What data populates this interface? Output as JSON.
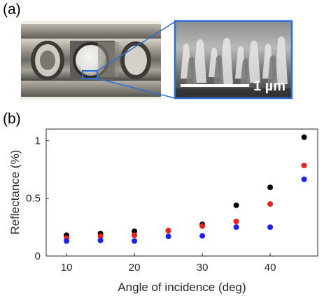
{
  "panels": {
    "a": "(a)",
    "b": "(b)"
  },
  "inset": {
    "scale_bar_label": "1 µm"
  },
  "colors": {
    "highlight_box": "#2a6fd6",
    "series_black": "#000000",
    "series_red": "#e8231c",
    "series_blue": "#1f22e8"
  },
  "chart_data": {
    "type": "scatter",
    "xlabel": "Angle of incidence (deg)",
    "ylabel": "Reflectance (%)",
    "xlim": [
      7,
      47
    ],
    "ylim": [
      0,
      1.1
    ],
    "xticks": [
      10,
      20,
      30,
      40
    ],
    "yticks": [
      0,
      0.5,
      1
    ],
    "ytick_labels": [
      "0",
      "0.5",
      "1"
    ],
    "grid": false,
    "legend": "none",
    "x": [
      10,
      15,
      20,
      25,
      30,
      35,
      40,
      45
    ],
    "series": [
      {
        "color": "#000000",
        "values": [
          0.18,
          0.195,
          0.215,
          0.22,
          0.275,
          0.44,
          0.595,
          1.03
        ]
      },
      {
        "color": "#e8231c",
        "values": [
          0.155,
          0.17,
          0.18,
          0.22,
          0.26,
          0.3,
          0.45,
          0.785
        ]
      },
      {
        "color": "#1f22e8",
        "values": [
          0.13,
          0.135,
          0.13,
          0.17,
          0.175,
          0.25,
          0.25,
          0.665
        ]
      }
    ]
  }
}
